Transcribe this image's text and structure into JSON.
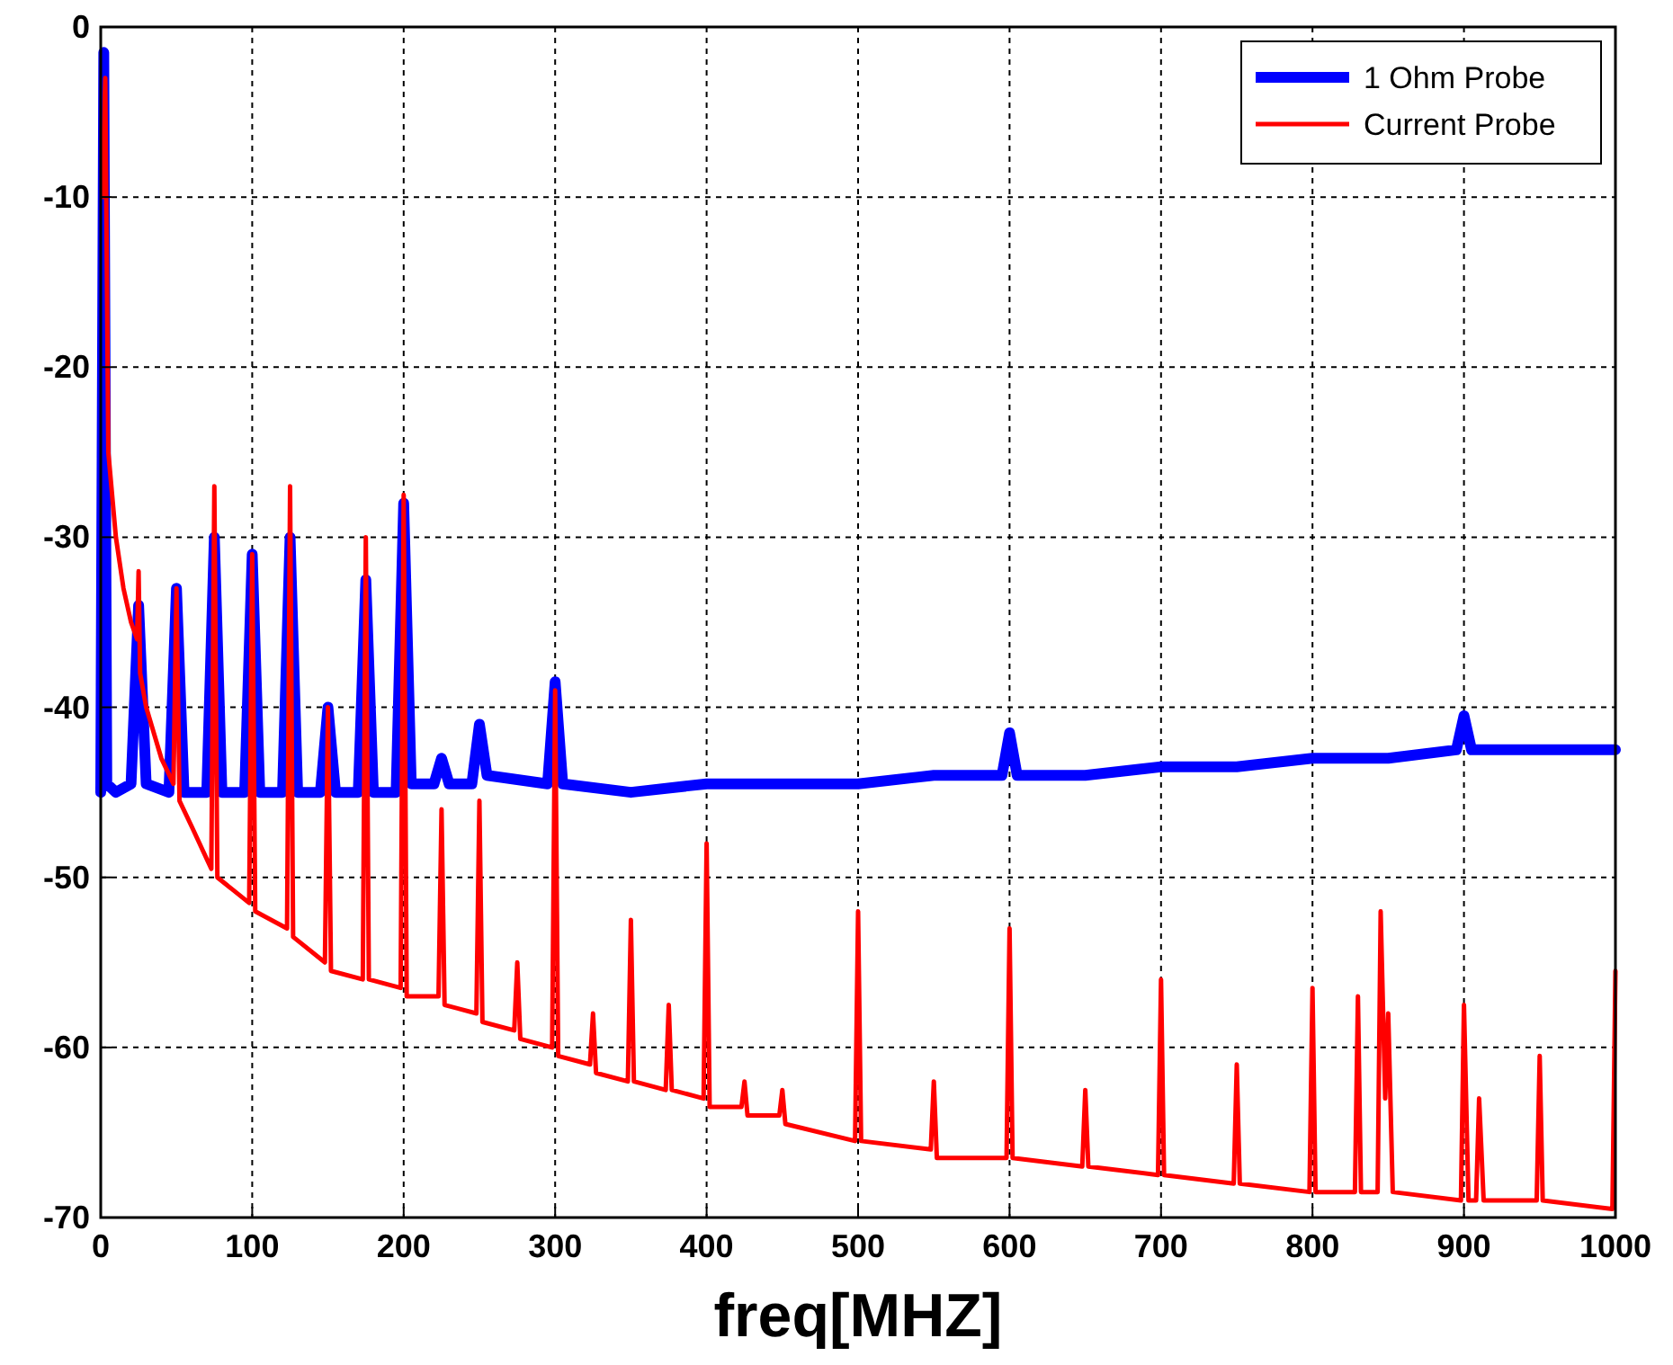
{
  "chart_data": {
    "type": "line",
    "xlabel": "freq[MHZ]",
    "xlim": [
      0,
      1000
    ],
    "xticks": [
      0,
      100,
      200,
      300,
      400,
      500,
      600,
      700,
      800,
      900,
      1000
    ],
    "ylim": [
      -70,
      0
    ],
    "yticks": [
      -70,
      -60,
      -50,
      -40,
      -30,
      -20,
      -10,
      0
    ],
    "grid": true,
    "legend": "top right",
    "line_style": "solid",
    "series": [
      {
        "name": "1 Ohm Probe",
        "color": "#0000ff",
        "x": [
          0,
          2,
          4,
          10,
          20,
          25,
          30,
          45,
          50,
          55,
          70,
          75,
          80,
          95,
          100,
          105,
          120,
          125,
          130,
          145,
          150,
          155,
          170,
          175,
          180,
          195,
          200,
          205,
          220,
          225,
          230,
          245,
          250,
          255,
          295,
          300,
          305,
          350,
          400,
          450,
          500,
          550,
          595,
          600,
          605,
          650,
          700,
          750,
          800,
          850,
          895,
          900,
          905,
          950,
          1000
        ],
        "values": [
          -45,
          -1.5,
          -44.5,
          -45,
          -44.5,
          -34,
          -44.5,
          -45,
          -33,
          -45,
          -45,
          -30,
          -45,
          -45,
          -31,
          -45,
          -45,
          -30,
          -45,
          -45,
          -40,
          -45,
          -45,
          -32.5,
          -45,
          -45,
          -28,
          -44.5,
          -44.5,
          -43,
          -44.5,
          -44.5,
          -41,
          -44,
          -44.5,
          -38.5,
          -44.5,
          -45,
          -44.5,
          -44.5,
          -44.5,
          -44,
          -44,
          -41.5,
          -44,
          -44,
          -43.5,
          -43.5,
          -43,
          -43,
          -42.5,
          -40.5,
          -42.5,
          -42.5,
          -42.5
        ]
      },
      {
        "name": "Current Probe",
        "color": "#ff0000",
        "x": [
          1,
          3,
          5,
          10,
          15,
          20,
          24,
          25,
          26,
          30,
          40,
          48,
          50,
          52,
          60,
          73,
          75,
          77,
          98,
          100,
          102,
          123,
          125,
          127,
          148,
          150,
          152,
          173,
          175,
          177,
          198,
          200,
          202,
          223,
          225,
          227,
          248,
          250,
          252,
          273,
          275,
          277,
          298,
          300,
          302,
          323,
          325,
          327,
          348,
          350,
          352,
          373,
          375,
          377,
          398,
          400,
          402,
          423,
          425,
          427,
          448,
          450,
          452,
          498,
          500,
          502,
          548,
          550,
          552,
          598,
          600,
          602,
          648,
          650,
          652,
          698,
          700,
          702,
          748,
          750,
          752,
          798,
          800,
          802,
          828,
          830,
          832,
          843,
          845,
          848,
          850,
          853,
          898,
          900,
          903,
          908,
          910,
          913,
          948,
          950,
          952,
          998,
          1000
        ],
        "values": [
          -10,
          -3,
          -25,
          -30,
          -33,
          -35,
          -36,
          -32,
          -38,
          -40,
          -43,
          -44.5,
          -33,
          -45.5,
          -47,
          -49.5,
          -27,
          -50,
          -51.5,
          -31,
          -52,
          -53,
          -27,
          -53.5,
          -55,
          -40,
          -55.5,
          -56,
          -30,
          -56,
          -56.5,
          -27.5,
          -57,
          -57,
          -46,
          -57.5,
          -58,
          -45.5,
          -58.5,
          -59,
          -55,
          -59.5,
          -60,
          -39,
          -60.5,
          -61,
          -58,
          -61.5,
          -62,
          -52.5,
          -62,
          -62.5,
          -57.5,
          -62.5,
          -63,
          -48,
          -63.5,
          -63.5,
          -62,
          -64,
          -64,
          -62.5,
          -64.5,
          -65.5,
          -52,
          -65.5,
          -66,
          -62,
          -66.5,
          -66.5,
          -53,
          -66.5,
          -67,
          -62.5,
          -67,
          -67.5,
          -56,
          -67.5,
          -68,
          -61,
          -68,
          -68.5,
          -56.5,
          -68.5,
          -68.5,
          -57,
          -68.5,
          -68.5,
          -52,
          -63,
          -58,
          -68.5,
          -69,
          -57.5,
          -69,
          -69,
          -63,
          -69,
          -69,
          -60.5,
          -69,
          -69.5,
          -55.5
        ]
      }
    ]
  }
}
